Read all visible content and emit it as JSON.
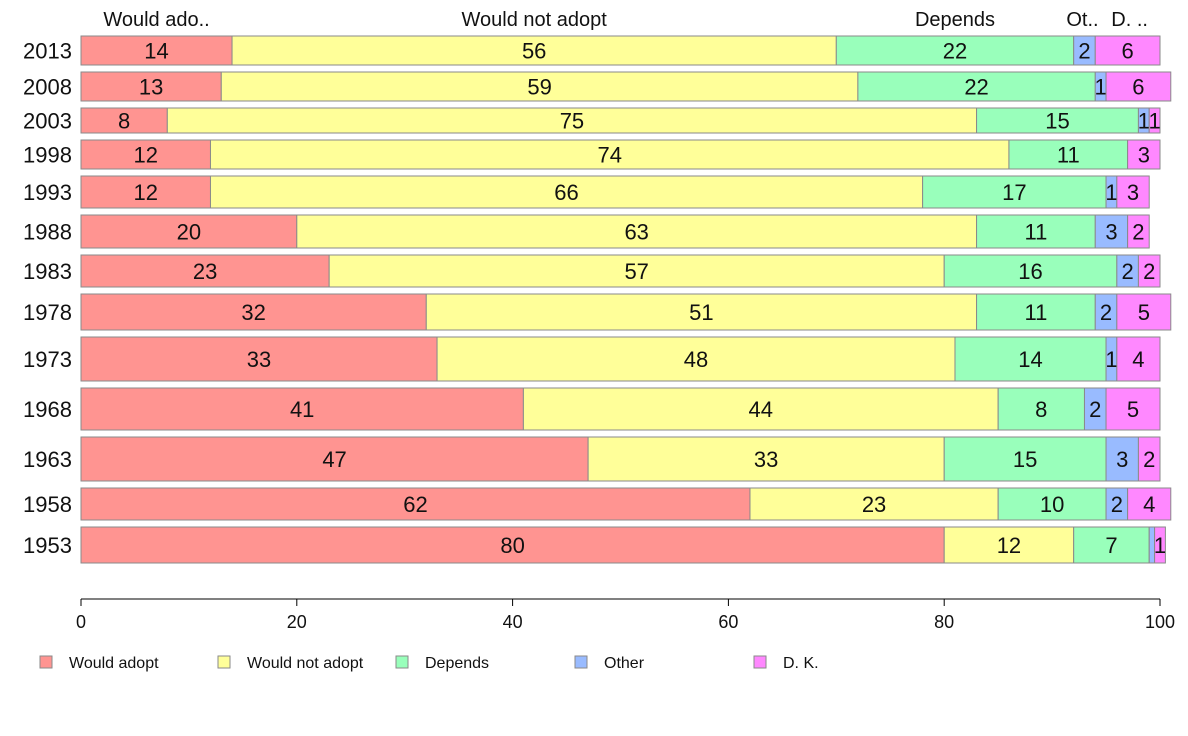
{
  "chart_data": {
    "type": "bar",
    "orientation": "horizontal",
    "stacked": true,
    "categories": [
      "2013",
      "2008",
      "2003",
      "1998",
      "1993",
      "1988",
      "1983",
      "1978",
      "1973",
      "1968",
      "1963",
      "1958",
      "1953"
    ],
    "series": [
      {
        "name": "Would adopt",
        "short_label": "Would ado..",
        "color": "#ff9491",
        "values": [
          14,
          13,
          8,
          12,
          12,
          20,
          23,
          32,
          33,
          41,
          47,
          62,
          80
        ]
      },
      {
        "name": "Would not adopt",
        "short_label": "Would not adopt",
        "color": "#ffff99",
        "values": [
          56,
          59,
          75,
          74,
          66,
          63,
          57,
          51,
          48,
          44,
          33,
          23,
          12
        ]
      },
      {
        "name": "Depends",
        "short_label": "Depends",
        "color": "#99ffbb",
        "values": [
          22,
          22,
          15,
          11,
          17,
          11,
          16,
          11,
          14,
          8,
          15,
          10,
          7
        ]
      },
      {
        "name": "Other",
        "short_label": "Ot..",
        "color": "#99bbff",
        "values": [
          2,
          1,
          1,
          0,
          1,
          3,
          2,
          2,
          1,
          2,
          3,
          2,
          0.5
        ]
      },
      {
        "name": "D. K.",
        "short_label": "D. ..",
        "color": "#ff88ff",
        "values": [
          6,
          6,
          1,
          3,
          3,
          2,
          2,
          5,
          4,
          5,
          2,
          4,
          1
        ]
      }
    ],
    "segment_labels": [
      [
        "14",
        "56",
        "22",
        "2",
        "6"
      ],
      [
        "13",
        "59",
        "22",
        "1",
        "6"
      ],
      [
        "8",
        "75",
        "15",
        "1",
        "1"
      ],
      [
        "12",
        "74",
        "11",
        "",
        "3"
      ],
      [
        "12",
        "66",
        "17",
        "1",
        "3"
      ],
      [
        "20",
        "63",
        "11",
        "3",
        "2"
      ],
      [
        "23",
        "57",
        "16",
        "2",
        "2"
      ],
      [
        "32",
        "51",
        "11",
        "2",
        "5"
      ],
      [
        "33",
        "48",
        "14",
        "1",
        "4"
      ],
      [
        "41",
        "44",
        "8",
        "2",
        "5"
      ],
      [
        "47",
        "33",
        "15",
        "3",
        "2"
      ],
      [
        "62",
        "23",
        "10",
        "2",
        "4"
      ],
      [
        "80",
        "12",
        "7",
        "",
        "1"
      ]
    ],
    "bar_widths": [
      29,
      29,
      25,
      29,
      32,
      33,
      32,
      36,
      44,
      42,
      44,
      32,
      36
    ],
    "xlim": [
      0,
      100
    ],
    "xticks": [
      "0",
      "20",
      "40",
      "60",
      "80",
      "100"
    ],
    "xlabel": "",
    "ylabel": "",
    "title": "",
    "grid": false,
    "legend_position": "bottom"
  }
}
